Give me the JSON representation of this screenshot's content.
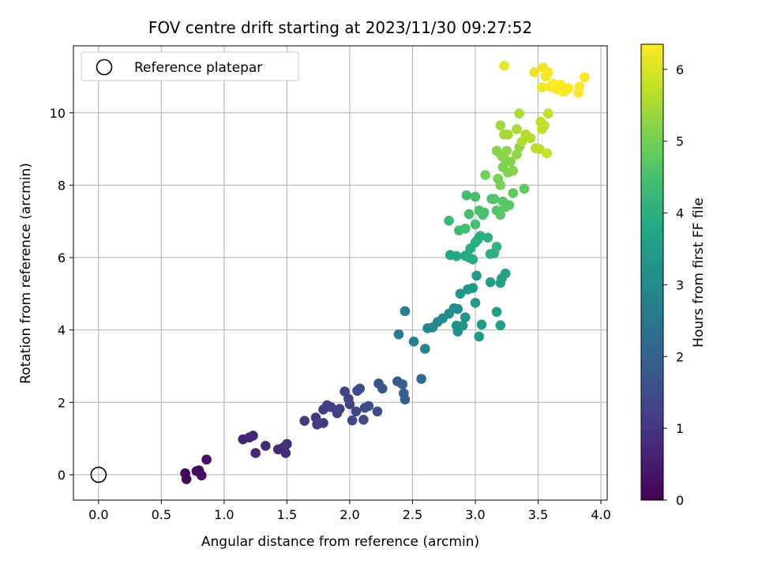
{
  "chart_data": {
    "type": "scatter",
    "title": "FOV centre drift starting at 2023/11/30 09:27:52",
    "xlabel": "Angular distance from reference (arcmin)",
    "ylabel": "Rotation from reference (arcmin)",
    "xlim": [
      -0.2,
      4.05
    ],
    "ylim": [
      -0.7,
      11.85
    ],
    "xticks": [
      0.0,
      0.5,
      1.0,
      1.5,
      2.0,
      2.5,
      3.0,
      3.5,
      4.0
    ],
    "xtick_labels": [
      "0.0",
      "0.5",
      "1.0",
      "1.5",
      "2.0",
      "2.5",
      "3.0",
      "3.5",
      "4.0"
    ],
    "yticks": [
      0,
      2,
      4,
      6,
      8,
      10
    ],
    "ytick_labels": [
      "0",
      "2",
      "4",
      "6",
      "8",
      "10"
    ],
    "grid": true,
    "legend": {
      "placement": "upper-left",
      "entries": [
        "Reference platepar"
      ]
    },
    "reference_point": {
      "x": 0.0,
      "y": 0.0
    },
    "colorbar": {
      "label": "Hours from first FF file",
      "range": [
        0,
        6.35
      ],
      "ticks": [
        0,
        1,
        2,
        3,
        4,
        5,
        6
      ],
      "tick_labels": [
        "0",
        "1",
        "2",
        "3",
        "4",
        "5",
        "6"
      ],
      "colormap": "viridis"
    },
    "points": [
      [
        0.69,
        0.04,
        0.1
      ],
      [
        0.7,
        -0.12,
        0.12
      ],
      [
        0.78,
        0.1,
        0.15
      ],
      [
        0.8,
        0.12,
        0.18
      ],
      [
        0.82,
        -0.02,
        0.2
      ],
      [
        0.86,
        0.42,
        0.25
      ],
      [
        1.15,
        0.98,
        0.6
      ],
      [
        1.2,
        1.03,
        0.65
      ],
      [
        1.23,
        1.08,
        0.68
      ],
      [
        1.25,
        0.6,
        0.7
      ],
      [
        1.33,
        0.8,
        0.75
      ],
      [
        1.43,
        0.7,
        0.78
      ],
      [
        1.47,
        0.75,
        0.8
      ],
      [
        1.49,
        0.6,
        0.82
      ],
      [
        1.5,
        0.85,
        0.85
      ],
      [
        1.64,
        1.49,
        1.0
      ],
      [
        1.73,
        1.58,
        1.05
      ],
      [
        1.74,
        1.39,
        1.08
      ],
      [
        1.79,
        1.43,
        1.1
      ],
      [
        1.79,
        1.8,
        1.12
      ],
      [
        1.82,
        1.92,
        1.15
      ],
      [
        1.85,
        1.87,
        1.18
      ],
      [
        1.9,
        1.7,
        1.2
      ],
      [
        1.92,
        1.82,
        1.22
      ],
      [
        1.96,
        2.3,
        1.25
      ],
      [
        1.99,
        2.1,
        1.28
      ],
      [
        2.0,
        1.95,
        1.3
      ],
      [
        2.02,
        1.5,
        1.32
      ],
      [
        2.05,
        1.75,
        1.35
      ],
      [
        2.06,
        2.32,
        1.38
      ],
      [
        2.08,
        2.38,
        1.4
      ],
      [
        2.11,
        1.52,
        1.42
      ],
      [
        2.12,
        1.85,
        1.45
      ],
      [
        2.15,
        1.9,
        1.48
      ],
      [
        2.22,
        1.75,
        1.5
      ],
      [
        2.23,
        2.52,
        1.7
      ],
      [
        2.26,
        2.38,
        1.75
      ],
      [
        2.38,
        2.58,
        1.85
      ],
      [
        2.42,
        2.5,
        1.9
      ],
      [
        2.43,
        2.25,
        1.95
      ],
      [
        2.44,
        2.08,
        2.0
      ],
      [
        2.57,
        2.65,
        2.2
      ],
      [
        2.39,
        3.88,
        2.6
      ],
      [
        2.44,
        4.52,
        2.7
      ],
      [
        2.51,
        3.68,
        2.75
      ],
      [
        2.6,
        3.48,
        2.8
      ],
      [
        2.62,
        4.05,
        2.85
      ],
      [
        2.66,
        4.07,
        2.9
      ],
      [
        2.7,
        4.22,
        2.95
      ],
      [
        2.74,
        4.32,
        3.0
      ],
      [
        2.79,
        4.45,
        3.05
      ],
      [
        2.83,
        4.6,
        3.1
      ],
      [
        2.86,
        4.58,
        3.12
      ],
      [
        2.85,
        4.12,
        3.15
      ],
      [
        2.86,
        3.96,
        3.18
      ],
      [
        2.9,
        4.12,
        3.2
      ],
      [
        2.92,
        4.35,
        3.22
      ],
      [
        2.88,
        5.0,
        3.28
      ],
      [
        2.94,
        5.12,
        3.32
      ],
      [
        2.98,
        5.16,
        3.35
      ],
      [
        3.0,
        4.75,
        3.38
      ],
      [
        3.03,
        3.82,
        3.4
      ],
      [
        3.05,
        4.15,
        3.42
      ],
      [
        3.01,
        5.5,
        3.45
      ],
      [
        3.12,
        5.32,
        3.5
      ],
      [
        3.17,
        4.5,
        3.52
      ],
      [
        3.2,
        5.3,
        3.55
      ],
      [
        3.2,
        4.13,
        3.58
      ],
      [
        3.21,
        5.42,
        3.6
      ],
      [
        3.24,
        5.56,
        3.62
      ],
      [
        2.8,
        6.07,
        3.8
      ],
      [
        2.85,
        6.04,
        3.82
      ],
      [
        2.92,
        6.05,
        3.85
      ],
      [
        2.95,
        6.0,
        3.88
      ],
      [
        2.96,
        6.25,
        3.9
      ],
      [
        2.98,
        5.95,
        3.92
      ],
      [
        3.0,
        6.42,
        3.95
      ],
      [
        3.02,
        6.5,
        3.98
      ],
      [
        3.04,
        6.6,
        4.0
      ],
      [
        3.1,
        6.55,
        4.02
      ],
      [
        3.12,
        6.1,
        4.05
      ],
      [
        3.15,
        6.12,
        4.08
      ],
      [
        3.17,
        6.3,
        4.1
      ],
      [
        2.79,
        7.02,
        4.3
      ],
      [
        2.87,
        6.75,
        4.35
      ],
      [
        2.92,
        6.8,
        4.38
      ],
      [
        2.93,
        7.72,
        4.4
      ],
      [
        2.95,
        7.2,
        4.42
      ],
      [
        3.0,
        6.92,
        4.45
      ],
      [
        3.0,
        7.68,
        4.48
      ],
      [
        3.03,
        7.3,
        4.5
      ],
      [
        3.06,
        7.18,
        4.52
      ],
      [
        3.07,
        7.25,
        4.55
      ],
      [
        3.13,
        7.62,
        4.58
      ],
      [
        3.15,
        7.62,
        4.6
      ],
      [
        3.17,
        7.3,
        4.62
      ],
      [
        3.2,
        7.18,
        4.65
      ],
      [
        3.22,
        7.55,
        4.68
      ],
      [
        3.24,
        7.4,
        4.7
      ],
      [
        3.27,
        7.45,
        4.72
      ],
      [
        3.3,
        7.78,
        4.75
      ],
      [
        3.39,
        7.9,
        4.78
      ],
      [
        3.08,
        8.28,
        5.0
      ],
      [
        3.18,
        8.18,
        5.02
      ],
      [
        3.2,
        8.0,
        5.05
      ],
      [
        3.22,
        8.5,
        5.08
      ],
      [
        3.24,
        8.7,
        5.1
      ],
      [
        3.26,
        8.35,
        5.12
      ],
      [
        3.28,
        8.65,
        5.15
      ],
      [
        3.3,
        8.4,
        5.18
      ],
      [
        3.17,
        8.95,
        5.2
      ],
      [
        3.21,
        8.8,
        5.22
      ],
      [
        3.25,
        8.95,
        5.25
      ],
      [
        3.33,
        8.85,
        5.28
      ],
      [
        3.35,
        9.05,
        5.3
      ],
      [
        3.2,
        9.65,
        5.45
      ],
      [
        3.23,
        9.4,
        5.48
      ],
      [
        3.26,
        9.4,
        5.5
      ],
      [
        3.33,
        9.55,
        5.52
      ],
      [
        3.35,
        9.98,
        5.55
      ],
      [
        3.37,
        9.2,
        5.58
      ],
      [
        3.4,
        9.4,
        5.6
      ],
      [
        3.44,
        9.3,
        5.62
      ],
      [
        3.48,
        9.02,
        5.65
      ],
      [
        3.51,
        9.0,
        5.68
      ],
      [
        3.52,
        9.75,
        5.7
      ],
      [
        3.53,
        9.55,
        5.72
      ],
      [
        3.55,
        9.65,
        5.75
      ],
      [
        3.57,
        8.88,
        5.78
      ],
      [
        3.58,
        9.98,
        5.8
      ],
      [
        3.23,
        11.3,
        6.15
      ],
      [
        3.47,
        11.12,
        6.18
      ],
      [
        3.53,
        10.7,
        6.2
      ],
      [
        3.54,
        11.25,
        6.22
      ],
      [
        3.56,
        11.0,
        6.25
      ],
      [
        3.58,
        11.12,
        6.28
      ],
      [
        3.6,
        10.72,
        6.3
      ],
      [
        3.62,
        10.8,
        6.32
      ],
      [
        3.65,
        10.65,
        6.33
      ],
      [
        3.68,
        10.78,
        6.34
      ],
      [
        3.7,
        10.58,
        6.35
      ],
      [
        3.72,
        10.62,
        6.35
      ],
      [
        3.74,
        10.68,
        6.35
      ],
      [
        3.82,
        10.55,
        6.35
      ],
      [
        3.83,
        10.72,
        6.35
      ],
      [
        3.87,
        10.98,
        6.35
      ]
    ]
  }
}
